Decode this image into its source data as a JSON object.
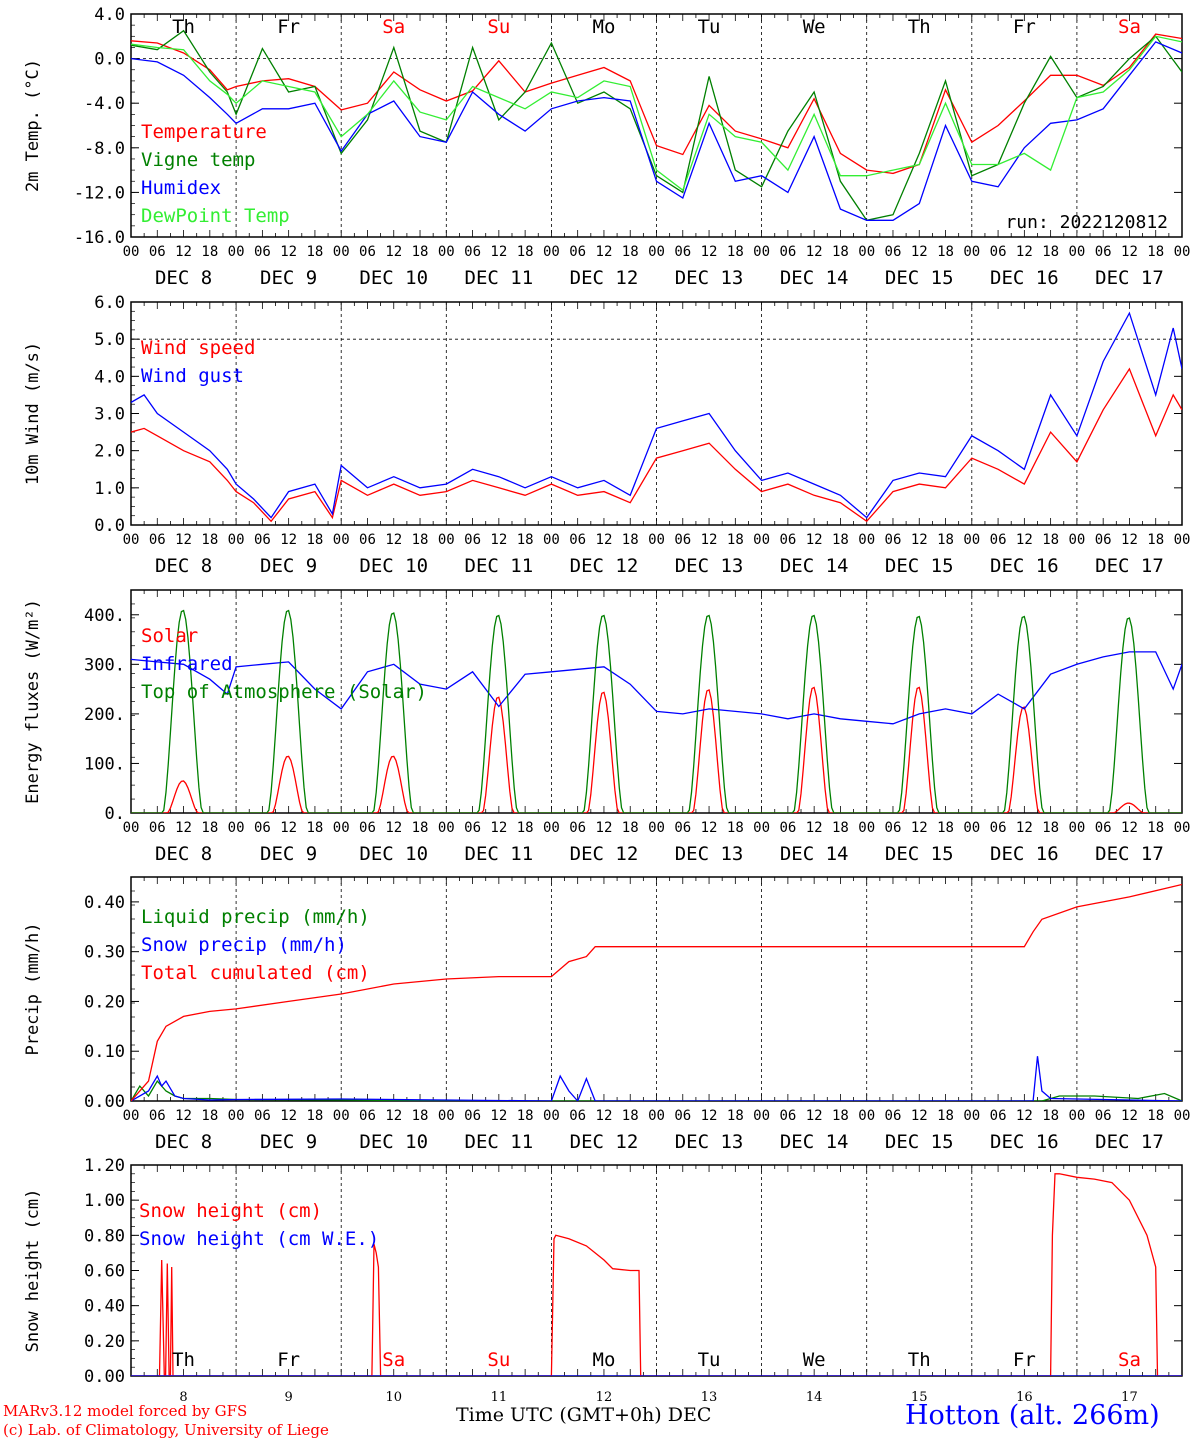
{
  "colors": {
    "red": "#ff0000",
    "green": "#008000",
    "blue": "#0000ff",
    "lightgreen": "#33ee33"
  },
  "weekdays": [
    "Th",
    "Fr",
    "Sa",
    "Su",
    "Mo",
    "Tu",
    "We",
    "Th",
    "Fr",
    "Sa"
  ],
  "weekday_colors": [
    "#000000",
    "#000000",
    "#ff0000",
    "#ff0000",
    "#000000",
    "#000000",
    "#000000",
    "#000000",
    "#000000",
    "#ff0000"
  ],
  "hour_ticks": [
    "00",
    "06",
    "12",
    "18"
  ],
  "final_hour_tick": "00",
  "dates": [
    "DEC  8",
    "DEC  9",
    "DEC 10",
    "DEC 11",
    "DEC 12",
    "DEC 13",
    "DEC 14",
    "DEC 15",
    "DEC 16",
    "DEC 17"
  ],
  "bottom_day_numbers": [
    "8",
    "9",
    "10",
    "11",
    "12",
    "13",
    "14",
    "15",
    "16",
    "17"
  ],
  "xlabel": "Time UTC (GMT+0h)",
  "xlabel_month": "DEC",
  "footer": {
    "model": "MARv3.12 model forced by GFS",
    "credit": "(c) Lab. of Climatology, University of Liege",
    "station": "Hotton (alt. 266m)"
  },
  "chart_data": [
    {
      "type": "line",
      "ylabel": "2m Temp. (°C)",
      "ylim": [
        -16,
        4
      ],
      "yticks": [
        "4.0",
        "0.0",
        "-4.0",
        "-8.0",
        "-12.0",
        "-16.0"
      ],
      "annotation": "run: 2022120812",
      "x_unit": "hours since Dec 8 00 UTC",
      "series": [
        {
          "name": "Temperature",
          "color": "#ff0000",
          "x": [
            0,
            6,
            12,
            18,
            22,
            24,
            30,
            36,
            42,
            48,
            54,
            60,
            66,
            72,
            78,
            84,
            90,
            96,
            102,
            108,
            114,
            120,
            126,
            132,
            138,
            144,
            150,
            156,
            162,
            168,
            174,
            180,
            186,
            192,
            198,
            204,
            210,
            216,
            222,
            228,
            234,
            240
          ],
          "y": [
            1.6,
            1.4,
            0.5,
            -1.0,
            -2.8,
            -2.5,
            -2.0,
            -1.8,
            -2.5,
            -4.6,
            -4.0,
            -1.2,
            -2.8,
            -3.8,
            -2.9,
            -0.2,
            -3.0,
            -2.2,
            -1.5,
            -0.8,
            -2.0,
            -7.8,
            -8.6,
            -4.2,
            -6.5,
            -7.2,
            -8.0,
            -3.6,
            -8.5,
            -10.0,
            -10.3,
            -9.5,
            -2.8,
            -7.5,
            -6.0,
            -3.8,
            -1.5,
            -1.5,
            -2.4,
            -0.8,
            2.2,
            1.8
          ]
        },
        {
          "name": "Vigne temp",
          "color": "#008000",
          "x": [
            0,
            6,
            12,
            18,
            22,
            24,
            30,
            36,
            42,
            48,
            54,
            60,
            66,
            72,
            78,
            84,
            90,
            96,
            102,
            108,
            114,
            120,
            126,
            132,
            138,
            144,
            150,
            156,
            162,
            168,
            174,
            180,
            186,
            192,
            198,
            204,
            210,
            216,
            222,
            228,
            234,
            240
          ],
          "y": [
            1.2,
            0.8,
            2.5,
            -1.2,
            -3.0,
            -5.0,
            0.9,
            -3.0,
            -2.5,
            -8.5,
            -5.5,
            1.0,
            -6.5,
            -7.5,
            1.0,
            -5.5,
            -3.0,
            1.4,
            -4.0,
            -3.0,
            -4.5,
            -10.5,
            -12.0,
            -1.6,
            -10.0,
            -11.5,
            -6.5,
            -3.0,
            -11.0,
            -14.5,
            -14.0,
            -8.5,
            -2.0,
            -10.5,
            -9.5,
            -4.0,
            0.2,
            -3.5,
            -2.5,
            0.0,
            2.0,
            -1.2
          ]
        },
        {
          "name": "Humidex",
          "color": "#0000ff",
          "x": [
            0,
            6,
            12,
            18,
            22,
            24,
            30,
            36,
            42,
            48,
            54,
            60,
            66,
            72,
            78,
            84,
            90,
            96,
            102,
            108,
            114,
            120,
            126,
            132,
            138,
            144,
            150,
            156,
            162,
            168,
            174,
            180,
            186,
            192,
            198,
            204,
            210,
            216,
            222,
            228,
            234,
            240
          ],
          "y": [
            0.0,
            -0.3,
            -1.5,
            -3.5,
            -5.0,
            -5.8,
            -4.5,
            -4.5,
            -4.0,
            -8.3,
            -5.0,
            -3.8,
            -7.0,
            -7.5,
            -3.0,
            -5.0,
            -6.5,
            -4.5,
            -3.8,
            -3.5,
            -3.8,
            -11.0,
            -12.5,
            -5.8,
            -11.0,
            -10.5,
            -12.0,
            -7.0,
            -13.5,
            -14.5,
            -14.5,
            -13.0,
            -6.0,
            -11.0,
            -11.5,
            -8.0,
            -5.8,
            -5.5,
            -4.5,
            -1.5,
            1.5,
            0.5
          ]
        },
        {
          "name": "DewPoint Temp",
          "color": "#33ee33",
          "x": [
            0,
            6,
            12,
            18,
            22,
            24,
            30,
            36,
            42,
            48,
            54,
            60,
            66,
            72,
            78,
            84,
            90,
            96,
            102,
            108,
            114,
            120,
            126,
            132,
            138,
            144,
            150,
            156,
            162,
            168,
            174,
            180,
            186,
            192,
            198,
            204,
            210,
            216,
            222,
            228,
            234,
            240
          ],
          "y": [
            1.3,
            1.0,
            0.8,
            -2.0,
            -3.2,
            -4.0,
            -2.0,
            -2.5,
            -3.0,
            -7.0,
            -5.0,
            -2.0,
            -4.8,
            -5.5,
            -2.5,
            -3.5,
            -4.5,
            -3.0,
            -3.5,
            -2.0,
            -2.5,
            -10.0,
            -11.8,
            -5.0,
            -7.0,
            -7.5,
            -10.0,
            -5.0,
            -10.5,
            -10.5,
            -10.0,
            -9.5,
            -4.0,
            -9.5,
            -9.5,
            -8.5,
            -10.0,
            -3.5,
            -3.0,
            -1.0,
            2.0,
            1.5
          ]
        }
      ]
    },
    {
      "type": "line",
      "ylabel": "10m Wind (m/s)",
      "ylim": [
        0,
        6
      ],
      "yticks": [
        "6.0",
        "5.0",
        "4.0",
        "3.0",
        "2.0",
        "1.0",
        "0.0"
      ],
      "series": [
        {
          "name": "Wind speed",
          "color": "#ff0000",
          "x": [
            0,
            3,
            6,
            12,
            18,
            22,
            24,
            28,
            32,
            36,
            42,
            46,
            48,
            54,
            60,
            66,
            72,
            78,
            84,
            90,
            96,
            102,
            108,
            114,
            120,
            126,
            132,
            138,
            144,
            150,
            156,
            162,
            168,
            174,
            180,
            186,
            192,
            198,
            204,
            210,
            216,
            222,
            228,
            234,
            238,
            240
          ],
          "y": [
            2.5,
            2.6,
            2.4,
            2.0,
            1.7,
            1.2,
            0.9,
            0.6,
            0.1,
            0.7,
            0.9,
            0.2,
            1.2,
            0.8,
            1.1,
            0.8,
            0.9,
            1.2,
            1.0,
            0.8,
            1.1,
            0.8,
            0.9,
            0.6,
            1.8,
            2.0,
            2.2,
            1.5,
            0.9,
            1.1,
            0.8,
            0.6,
            0.1,
            0.9,
            1.1,
            1.0,
            1.8,
            1.5,
            1.1,
            2.5,
            1.7,
            3.1,
            4.2,
            2.4,
            3.5,
            3.1
          ]
        },
        {
          "name": "Wind gust",
          "color": "#0000ff",
          "x": [
            0,
            3,
            6,
            12,
            18,
            22,
            24,
            28,
            32,
            36,
            42,
            46,
            48,
            54,
            60,
            66,
            72,
            78,
            84,
            90,
            96,
            102,
            108,
            114,
            120,
            126,
            132,
            138,
            144,
            150,
            156,
            162,
            168,
            174,
            180,
            186,
            192,
            198,
            204,
            210,
            216,
            222,
            228,
            234,
            238,
            240
          ],
          "y": [
            3.3,
            3.5,
            3.0,
            2.5,
            2.0,
            1.5,
            1.1,
            0.7,
            0.2,
            0.9,
            1.1,
            0.3,
            1.6,
            1.0,
            1.3,
            1.0,
            1.1,
            1.5,
            1.3,
            1.0,
            1.3,
            1.0,
            1.2,
            0.8,
            2.6,
            2.8,
            3.0,
            2.0,
            1.2,
            1.4,
            1.1,
            0.8,
            0.2,
            1.2,
            1.4,
            1.3,
            2.4,
            2.0,
            1.5,
            3.5,
            2.4,
            4.4,
            5.7,
            3.5,
            5.3,
            4.2
          ]
        }
      ]
    },
    {
      "type": "line",
      "ylabel": "Energy fluxes (W/m²)",
      "ylim": [
        0,
        450
      ],
      "yticks": [
        "400.",
        "300.",
        "200.",
        "100.",
        "0."
      ],
      "series": [
        {
          "name": "Solar",
          "color": "#ff0000",
          "daily_peaks": [
            65,
            115,
            115,
            235,
            245,
            250,
            255,
            255,
            215,
            20
          ]
        },
        {
          "name": "Infrared",
          "color": "#0000ff",
          "x": [
            0,
            6,
            12,
            18,
            22,
            24,
            30,
            36,
            42,
            48,
            54,
            60,
            66,
            72,
            78,
            84,
            90,
            96,
            102,
            108,
            114,
            120,
            126,
            132,
            138,
            144,
            150,
            156,
            162,
            168,
            174,
            180,
            186,
            192,
            198,
            204,
            210,
            216,
            222,
            228,
            234,
            238,
            240
          ],
          "y": [
            310,
            305,
            300,
            270,
            240,
            295,
            300,
            305,
            250,
            210,
            285,
            300,
            260,
            250,
            285,
            215,
            280,
            285,
            290,
            295,
            260,
            205,
            200,
            210,
            205,
            200,
            190,
            200,
            190,
            185,
            180,
            200,
            210,
            200,
            240,
            210,
            280,
            300,
            315,
            325,
            325,
            250,
            300
          ]
        },
        {
          "name": "Top of Atmosphere (Solar)",
          "color": "#008000",
          "daily_peaks": [
            410,
            410,
            405,
            400,
            400,
            400,
            400,
            398,
            398,
            395
          ]
        }
      ]
    },
    {
      "type": "line",
      "ylabel": "Precip (mm/h)",
      "ylim": [
        0,
        0.45
      ],
      "yticks": [
        "0.40",
        "0.30",
        "0.20",
        "0.10",
        "0.00"
      ],
      "series": [
        {
          "name": "Liquid precip (mm/h)",
          "color": "#008000",
          "x": [
            0,
            2,
            4,
            6,
            8,
            10,
            12,
            18,
            24,
            48,
            72,
            100,
            168,
            208,
            212,
            220,
            230,
            236,
            240
          ],
          "y": [
            0,
            0.03,
            0.01,
            0.04,
            0.02,
            0.01,
            0.005,
            0.005,
            0.003,
            0.002,
            0.0,
            0.0,
            0.0,
            0.0,
            0.01,
            0.01,
            0.005,
            0.015,
            0.0
          ]
        },
        {
          "name": "Snow precip (mm/h)",
          "color": "#0000ff",
          "x": [
            0,
            4,
            6,
            7,
            8,
            10,
            12,
            18,
            24,
            48,
            72,
            96,
            98,
            100,
            102,
            104,
            106,
            110,
            200,
            206,
            207,
            208,
            210,
            240
          ],
          "y": [
            0,
            0.02,
            0.05,
            0.03,
            0.04,
            0.01,
            0.005,
            0.002,
            0.003,
            0.004,
            0.002,
            0.0,
            0.05,
            0.02,
            0.0,
            0.045,
            0.0,
            0.0,
            0.0,
            0.0,
            0.09,
            0.02,
            0.005,
            0.0
          ]
        },
        {
          "name": "Total cumulated (cm)",
          "color": "#ff0000",
          "x": [
            0,
            4,
            6,
            8,
            12,
            18,
            24,
            36,
            48,
            60,
            72,
            84,
            96,
            100,
            104,
            106,
            108,
            120,
            150,
            180,
            204,
            206,
            208,
            216,
            228,
            240
          ],
          "y": [
            0,
            0.04,
            0.12,
            0.15,
            0.17,
            0.18,
            0.185,
            0.2,
            0.215,
            0.235,
            0.245,
            0.25,
            0.25,
            0.28,
            0.29,
            0.31,
            0.31,
            0.31,
            0.31,
            0.31,
            0.31,
            0.34,
            0.365,
            0.39,
            0.41,
            0.435
          ]
        }
      ]
    },
    {
      "type": "line",
      "ylabel": "Snow height (cm)",
      "ylim": [
        0,
        1.2
      ],
      "yticks": [
        "1.20",
        "1.00",
        "0.80",
        "0.60",
        "0.40",
        "0.20",
        "0.00"
      ],
      "series": [
        {
          "name": "Snow height (cm)",
          "color": "#ff0000",
          "x": [
            0,
            6.5,
            7,
            7.6,
            7.9,
            8.3,
            8.7,
            9.0,
            9.3,
            9.6,
            9.9,
            10.1,
            55,
            55.5,
            56,
            56.5,
            57,
            57.5,
            96,
            96.6,
            97,
            100,
            104,
            108,
            110,
            114,
            116,
            116.4,
            210,
            210.4,
            211,
            212,
            216,
            220,
            224,
            228,
            232,
            234,
            234.4,
            240
          ],
          "y": [
            0,
            0,
            0.66,
            0,
            0,
            0.64,
            0,
            0,
            0.62,
            0,
            0,
            0,
            0,
            0.75,
            0.7,
            0.62,
            0,
            0,
            0,
            0.78,
            0.8,
            0.78,
            0.74,
            0.66,
            0.61,
            0.6,
            0.6,
            0,
            0,
            0.8,
            1.15,
            1.15,
            1.13,
            1.12,
            1.1,
            1.0,
            0.8,
            0.62,
            0,
            0
          ]
        },
        {
          "name": "Snow height (cm W.E.)",
          "color": "#0000ff",
          "x": [
            0,
            240
          ],
          "y": [
            0,
            0
          ]
        }
      ]
    }
  ]
}
